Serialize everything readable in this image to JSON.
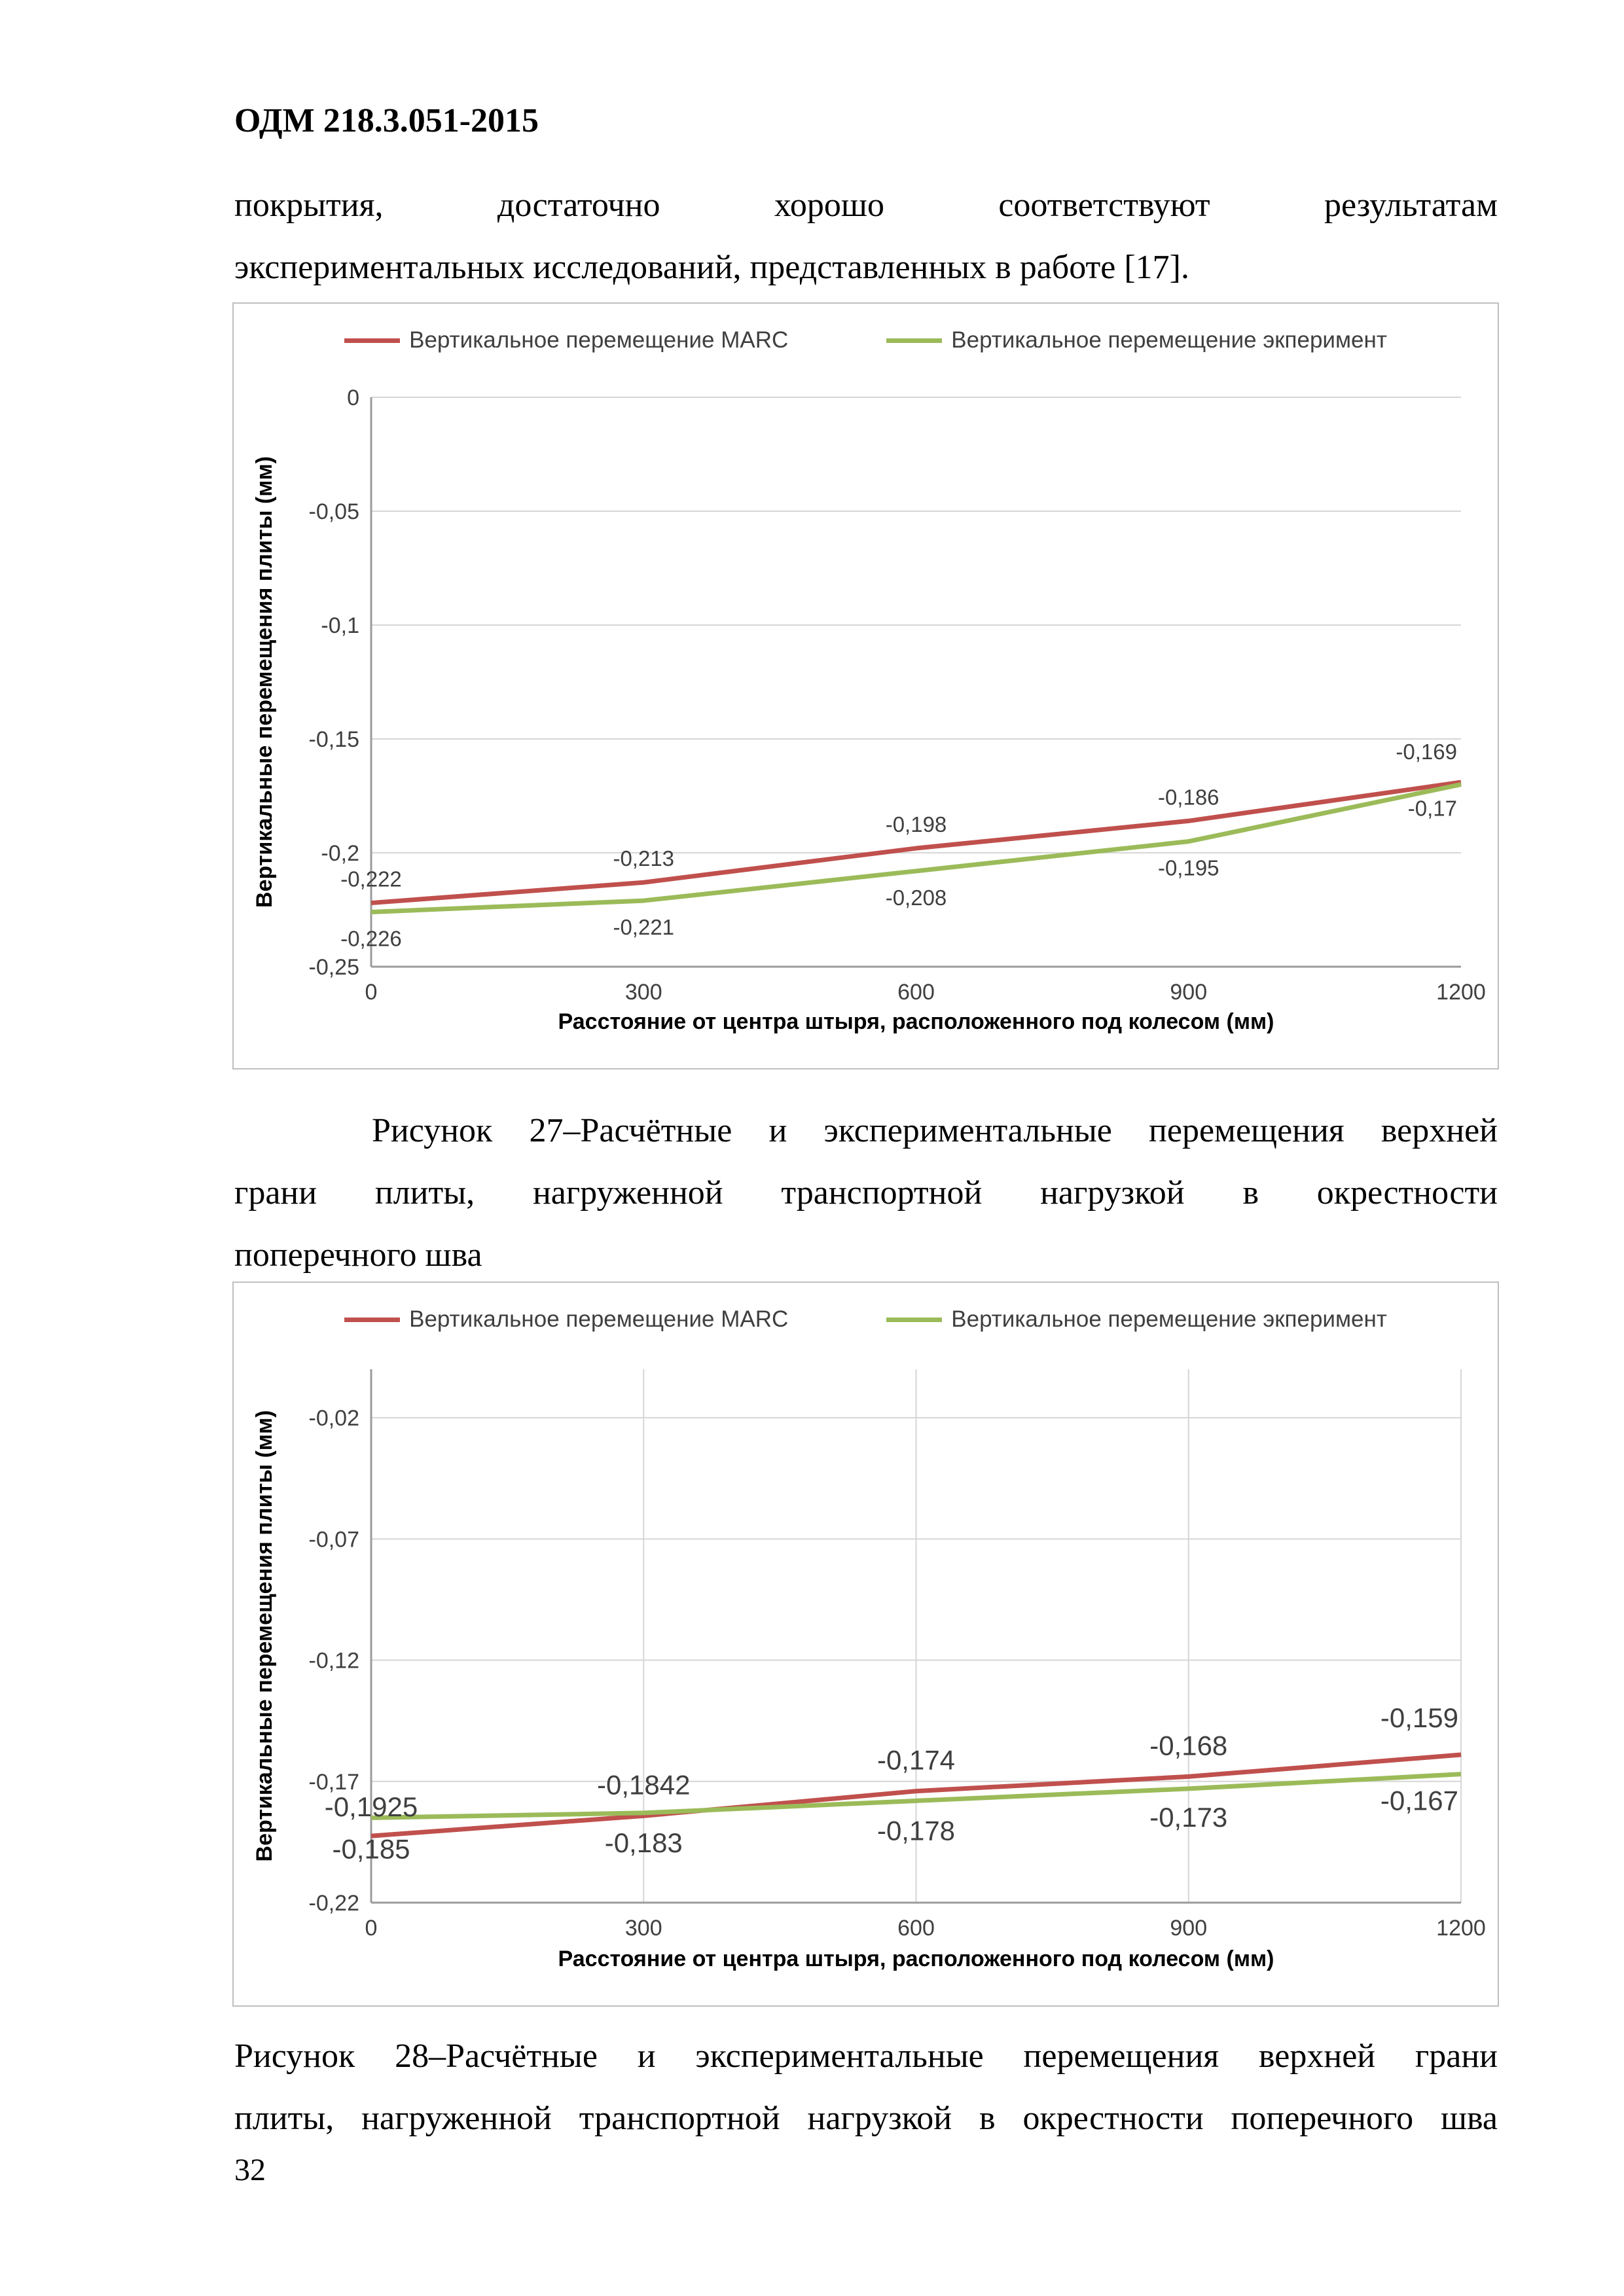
{
  "header": {
    "title": "ОДМ 218.3.051-2015"
  },
  "intro": {
    "lines": [
      "покрытия, достаточно хорошо соответствуют результатам",
      "экспериментальных исследований, представленных в работе [17]."
    ]
  },
  "figure27": {
    "caption_lines": [
      "Рисунок 27–Расчётные и экспериментальные перемещения верхней",
      "грани плиты, нагруженной транспортной нагрузкой в окрестности",
      "поперечного шва"
    ]
  },
  "figure28": {
    "caption_lines": [
      "Рисунок 28–Расчётные и экспериментальные перемещения верхней грани",
      "плиты, нагруженной транспортной нагрузкой в окрестности поперечного шва"
    ]
  },
  "footer": {
    "page_number": "32"
  },
  "colors": {
    "marc": "#C0504D",
    "experiment": "#9BBB59"
  },
  "chart_data": [
    {
      "type": "line",
      "title": "",
      "x": [
        0,
        300,
        600,
        900,
        1200
      ],
      "xticks": [
        0,
        300,
        600,
        900,
        1200
      ],
      "xtick_labels": [
        "0",
        "300",
        "600",
        "900",
        "1200"
      ],
      "xlabel": "Расстояние от центра штыря, расположенного под колесом (мм)",
      "ylabel": "Вертикальные перемещения плиты (мм)",
      "ylim": [
        0,
        -0.25
      ],
      "yticks": [
        0,
        -0.05,
        -0.1,
        -0.15,
        -0.2,
        -0.25
      ],
      "ytick_labels": [
        "0",
        "-0,05",
        "-0,1",
        "-0,15",
        "-0,2",
        "-0,25"
      ],
      "grid": "horizontal",
      "legend_position": "top",
      "series": [
        {
          "name": "Вертикальное перемещение  MARC",
          "color": "#C0504D",
          "values": [
            -0.222,
            -0.213,
            -0.198,
            -0.186,
            -0.169
          ],
          "labels": [
            "-0,222",
            "-0,213",
            "-0,198",
            "-0,186",
            "-0,169"
          ]
        },
        {
          "name": "Вертикальное перемещение экперимент",
          "color": "#9BBB59",
          "values": [
            -0.226,
            -0.221,
            -0.208,
            -0.195,
            -0.17
          ],
          "labels": [
            "-0,226",
            "-0,221",
            "-0,208",
            "-0,195",
            "-0,17"
          ]
        }
      ]
    },
    {
      "type": "line",
      "title": "",
      "x": [
        0,
        300,
        600,
        900,
        1200
      ],
      "xticks": [
        0,
        300,
        600,
        900,
        1200
      ],
      "xtick_labels": [
        "0",
        "300",
        "600",
        "900",
        "1200"
      ],
      "xlabel": "Расстояние от центра штыря, расположенного под колесом (мм)",
      "ylabel": "Вертикальные перемещения плиты (мм)",
      "ylim": [
        0,
        -0.22
      ],
      "yticks": [
        -0.02,
        -0.07,
        -0.12,
        -0.17,
        -0.22
      ],
      "ytick_labels": [
        "-0,02",
        "-0,07",
        "-0,12",
        "-0,17",
        "-0,22"
      ],
      "grid": "both",
      "legend_position": "top",
      "series": [
        {
          "name": "Вертикальное перемещение  MARC",
          "color": "#C0504D",
          "values": [
            -0.1925,
            -0.1842,
            -0.174,
            -0.168,
            -0.159
          ],
          "labels": [
            "-0,1925",
            "-0,1842",
            "-0,174",
            "-0,168",
            "-0,159"
          ]
        },
        {
          "name": "Вертикальное перемещение экперимент",
          "color": "#9BBB59",
          "values": [
            -0.185,
            -0.183,
            -0.178,
            -0.173,
            -0.167
          ],
          "labels": [
            "-0,185",
            "-0,183",
            "-0,178",
            "-0,173",
            "-0,167"
          ]
        }
      ]
    }
  ]
}
